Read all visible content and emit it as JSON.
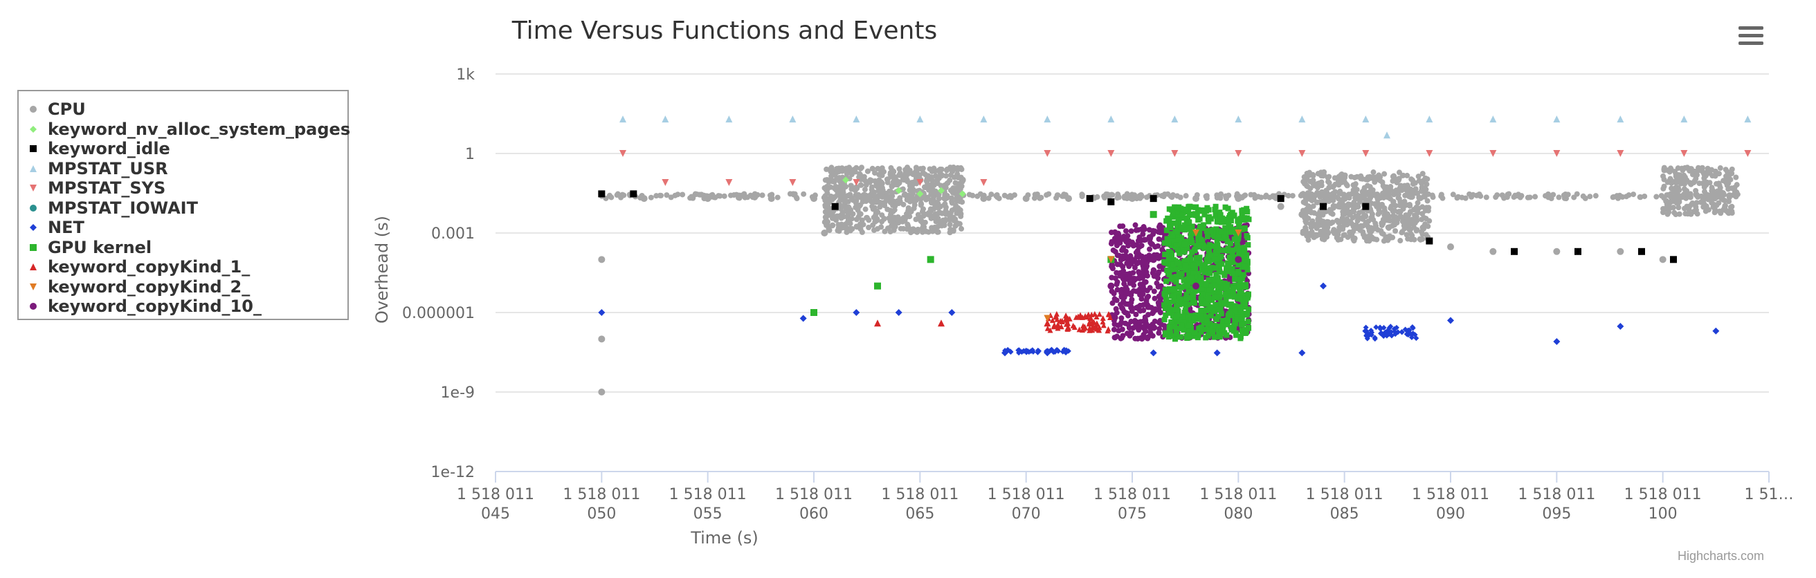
{
  "chart_data": {
    "type": "scatter",
    "title": "Time Versus Functions and Events",
    "xlabel": "Time (s)",
    "ylabel": "Overhead (s)",
    "x_tick_labels": [
      [
        "1 518 011",
        "045"
      ],
      [
        "1 518 011",
        "050"
      ],
      [
        "1 518 011",
        "055"
      ],
      [
        "1 518 011",
        "060"
      ],
      [
        "1 518 011",
        "065"
      ],
      [
        "1 518 011",
        "070"
      ],
      [
        "1 518 011",
        "075"
      ],
      [
        "1 518 011",
        "080"
      ],
      [
        "1 518 011",
        "085"
      ],
      [
        "1 518 011",
        "090"
      ],
      [
        "1 518 011",
        "095"
      ],
      [
        "1 518 011",
        "100"
      ],
      [
        "1 51…",
        ""
      ]
    ],
    "x_ticks": [
      1518011045,
      1518011050,
      1518011055,
      1518011060,
      1518011065,
      1518011070,
      1518011075,
      1518011080,
      1518011085,
      1518011090,
      1518011095,
      1518011100,
      1518011105
    ],
    "xlim": [
      1518011045,
      1518011105
    ],
    "y_scale": "log",
    "y_tick_labels": [
      "1e-12",
      "1e-9",
      "0.000001",
      "0.001",
      "1",
      "1k"
    ],
    "y_ticks": [
      1e-12,
      1e-09,
      1e-06,
      0.001,
      1,
      1000
    ],
    "ylim": [
      1e-12,
      1000
    ],
    "grid": "horizontal",
    "legend_position": "left",
    "series": [
      {
        "name": "CPU",
        "color": "#a6a6a6",
        "marker": "circle",
        "x": [
          1518011050,
          1518011050,
          1518011050,
          1518011050,
          1518011052,
          1518011055,
          1518011058,
          1518011060,
          1518011060.5,
          1518011061,
          1518011062,
          1518011063,
          1518011064,
          1518011065,
          1518011066,
          1518011067,
          1518011068,
          1518011070,
          1518011072,
          1518011075,
          1518011078,
          1518011080,
          1518011082,
          1518011083,
          1518011085,
          1518011086,
          1518011087,
          1518011088,
          1518011090,
          1518011092,
          1518011095,
          1518011098,
          1518011100,
          1518011101,
          1518011102,
          1518011103
        ],
        "y": [
          1e-09,
          1e-07,
          0.0001,
          0.03,
          0.02,
          0.02,
          0.02,
          0.02,
          0.001,
          0.05,
          0.05,
          0.06,
          0.08,
          0.1,
          0.15,
          0.1,
          0.02,
          0.02,
          0.02,
          0.02,
          0.02,
          0.02,
          0.01,
          0.005,
          0.02,
          0.01,
          0.005,
          0.003,
          0.0003,
          0.0002,
          0.0002,
          0.0002,
          0.0001,
          0.1,
          0.15,
          0.1
        ]
      },
      {
        "name": "keyword_nv_alloc_system_pages",
        "color": "#90ed7d",
        "marker": "diamond",
        "x": [
          1518011061.5,
          1518011064,
          1518011065,
          1518011066,
          1518011067
        ],
        "y": [
          0.1,
          0.04,
          0.03,
          0.04,
          0.03
        ]
      },
      {
        "name": "keyword_idle",
        "color": "#000000",
        "marker": "square",
        "x": [
          1518011050,
          1518011051.5,
          1518011061,
          1518011073,
          1518011074,
          1518011076,
          1518011082,
          1518011084,
          1518011086,
          1518011089,
          1518011093,
          1518011096,
          1518011099,
          1518011100.5
        ],
        "y": [
          0.03,
          0.03,
          0.01,
          0.02,
          0.015,
          0.02,
          0.02,
          0.01,
          0.01,
          0.0005,
          0.0002,
          0.0002,
          0.0002,
          0.0001
        ]
      },
      {
        "name": "MPSTAT_USR",
        "color": "#a6cee3",
        "marker": "triangle",
        "x": [
          1518011051,
          1518011053,
          1518011056,
          1518011059,
          1518011062,
          1518011065,
          1518011068,
          1518011071,
          1518011074,
          1518011077,
          1518011080,
          1518011083,
          1518011086,
          1518011087,
          1518011089,
          1518011092,
          1518011095,
          1518011098,
          1518011101,
          1518011104
        ],
        "y": [
          20,
          20,
          20,
          20,
          20,
          20,
          20,
          20,
          20,
          20,
          20,
          20,
          20,
          5,
          20,
          20,
          20,
          20,
          20,
          20
        ]
      },
      {
        "name": "MPSTAT_SYS",
        "color": "#e57373",
        "marker": "triangle-down",
        "x": [
          1518011051,
          1518011053,
          1518011056,
          1518011059,
          1518011062,
          1518011065,
          1518011068,
          1518011071,
          1518011074,
          1518011077,
          1518011080,
          1518011083,
          1518011086,
          1518011089,
          1518011092,
          1518011095,
          1518011098,
          1518011101,
          1518011104
        ],
        "y": [
          1,
          0.08,
          0.08,
          0.08,
          0.08,
          0.08,
          0.08,
          1,
          1,
          1,
          1,
          1,
          1,
          1,
          1,
          1,
          1,
          1,
          1
        ]
      },
      {
        "name": "MPSTAT_IOWAIT",
        "color": "#2b908f",
        "marker": "circle",
        "x": [],
        "y": []
      },
      {
        "name": "NET",
        "color": "#1f3fd6",
        "marker": "diamond",
        "x": [
          1518011050,
          1518011059.5,
          1518011062,
          1518011064,
          1518011066.5,
          1518011069,
          1518011071,
          1518011076,
          1518011079,
          1518011083,
          1518011084,
          1518011086,
          1518011088,
          1518011090,
          1518011095,
          1518011098,
          1518011102.5
        ],
        "y": [
          1e-06,
          6e-07,
          1e-06,
          1e-06,
          1e-06,
          3e-08,
          3e-08,
          3e-08,
          3e-08,
          3e-08,
          1e-05,
          2e-07,
          2e-07,
          5e-07,
          8e-08,
          3e-07,
          2e-07
        ]
      },
      {
        "name": "GPU kernel",
        "color": "#2db52d",
        "marker": "square",
        "x": [
          1518011060,
          1518011063,
          1518011065.5,
          1518011074,
          1518011076,
          1518011078,
          1518011080
        ],
        "y": [
          1e-06,
          1e-05,
          0.0001,
          0.0001,
          0.005,
          0.005,
          0.003
        ]
      },
      {
        "name": "keyword_copyKind_1_",
        "color": "#d62728",
        "marker": "triangle",
        "x": [
          1518011063,
          1518011066,
          1518011071,
          1518011073
        ],
        "y": [
          4e-07,
          4e-07,
          4e-07,
          4e-07
        ]
      },
      {
        "name": "keyword_copyKind_2_",
        "color": "#e07b24",
        "marker": "triangle-down",
        "x": [
          1518011071,
          1518011074,
          1518011078,
          1518011080
        ],
        "y": [
          6e-07,
          0.0001,
          0.001,
          0.001
        ]
      },
      {
        "name": "keyword_copyKind_10_",
        "color": "#7b1a7b",
        "marker": "circle",
        "x": [
          1518011074,
          1518011076,
          1518011078,
          1518011080
        ],
        "y": [
          1e-05,
          0.0001,
          1e-05,
          0.0001
        ]
      }
    ],
    "dense_regions": [
      {
        "series": "CPU",
        "x": [
          1518011050,
          1518011104
        ],
        "y": [
          0.02,
          0.03
        ]
      },
      {
        "series": "CPU",
        "x": [
          1518011060.5,
          1518011067
        ],
        "y": [
          0.001,
          0.3
        ]
      },
      {
        "series": "CPU",
        "x": [
          1518011083,
          1518011089
        ],
        "y": [
          0.0005,
          0.2
        ]
      },
      {
        "series": "CPU",
        "x": [
          1518011100,
          1518011103.5
        ],
        "y": [
          0.005,
          0.3
        ]
      },
      {
        "series": "keyword_copyKind_10_",
        "x": [
          1518011074,
          1518011080.5
        ],
        "y": [
          1e-07,
          0.002
        ]
      },
      {
        "series": "GPU kernel",
        "x": [
          1518011076.5,
          1518011080.5
        ],
        "y": [
          1e-07,
          0.01
        ]
      },
      {
        "series": "keyword_copyKind_1_",
        "x": [
          1518011071,
          1518011074
        ],
        "y": [
          2e-07,
          9e-07
        ]
      },
      {
        "series": "NET",
        "x": [
          1518011069,
          1518011072
        ],
        "y": [
          3e-08,
          4e-08
        ]
      },
      {
        "series": "NET",
        "x": [
          1518011086,
          1518011088.5
        ],
        "y": [
          1e-07,
          3e-07
        ]
      }
    ]
  },
  "credits": "Highcharts.com",
  "menu_icon": "hamburger-menu-icon"
}
